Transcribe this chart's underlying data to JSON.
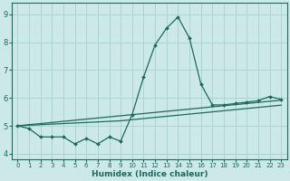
{
  "xlabel": "Humidex (Indice chaleur)",
  "background_color": "#cce8e8",
  "grid_color": "#aad4d4",
  "line_color": "#1a6b5a",
  "x_values": [
    0,
    1,
    2,
    3,
    4,
    5,
    6,
    7,
    8,
    9,
    10,
    11,
    12,
    13,
    14,
    15,
    16,
    17,
    18,
    19,
    20,
    21,
    22,
    23
  ],
  "y_main": [
    5.0,
    4.9,
    4.6,
    4.6,
    4.6,
    4.35,
    4.55,
    4.35,
    4.6,
    4.45,
    5.4,
    6.75,
    7.9,
    8.5,
    8.9,
    8.15,
    6.5,
    5.75,
    5.75,
    5.8,
    5.85,
    5.9,
    6.05,
    5.95
  ],
  "y_trend1": [
    5.0,
    5.04,
    5.08,
    5.12,
    5.16,
    5.2,
    5.24,
    5.28,
    5.32,
    5.36,
    5.4,
    5.44,
    5.48,
    5.52,
    5.56,
    5.6,
    5.64,
    5.68,
    5.72,
    5.76,
    5.8,
    5.84,
    5.88,
    5.92
  ],
  "y_trend2": [
    5.0,
    5.02,
    5.04,
    5.06,
    5.08,
    5.1,
    5.12,
    5.14,
    5.16,
    5.18,
    5.22,
    5.26,
    5.3,
    5.34,
    5.38,
    5.42,
    5.46,
    5.5,
    5.54,
    5.58,
    5.62,
    5.66,
    5.7,
    5.74
  ],
  "ylim": [
    3.8,
    9.4
  ],
  "xlim": [
    -0.5,
    23.5
  ],
  "yticks": [
    4,
    5,
    6,
    7,
    8,
    9
  ],
  "xticks": [
    0,
    1,
    2,
    3,
    4,
    5,
    6,
    7,
    8,
    9,
    10,
    11,
    12,
    13,
    14,
    15,
    16,
    17,
    18,
    19,
    20,
    21,
    22,
    23
  ],
  "xlabel_fontsize": 6.5,
  "tick_fontsize_x": 5.0,
  "tick_fontsize_y": 6.0
}
